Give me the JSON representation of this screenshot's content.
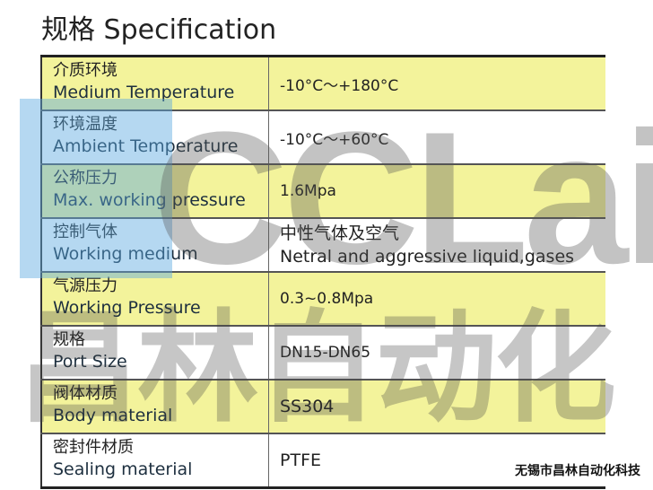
{
  "title": "规格 Specification",
  "rows": [
    {
      "zh": "介质环境",
      "en": "Medium Temperature",
      "value": "-10°C～+180°C"
    },
    {
      "zh": "环境温度",
      "en": "Ambient Temperature",
      "value": "-10°C～+60°C"
    },
    {
      "zh": "公称压力",
      "en": "Max. working pressure",
      "value": "1.6Mpa"
    },
    {
      "zh": "控制气体",
      "en": "Working medium",
      "value": "中性气体及空气",
      "value2": "Netral and aggressive liquid,gases"
    },
    {
      "zh": "气源压力",
      "en": "Working Pressure",
      "value": "0.3~0.8Mpa"
    },
    {
      "zh": "规格",
      "en": "Port Size",
      "value": "DN15-DN65"
    },
    {
      "zh": "阀体材质",
      "en": "Body material",
      "value": "SS304"
    },
    {
      "zh": "密封件材质",
      "en": "Sealing material",
      "value": "PTFE"
    }
  ],
  "watermark": {
    "en": "CCLair",
    "zh": "昌林自动化"
  },
  "footer": "无锡市昌林自动化科技",
  "colors": {
    "highlight": "#f3f39b",
    "watermark_blue": "#5aa8e0"
  }
}
